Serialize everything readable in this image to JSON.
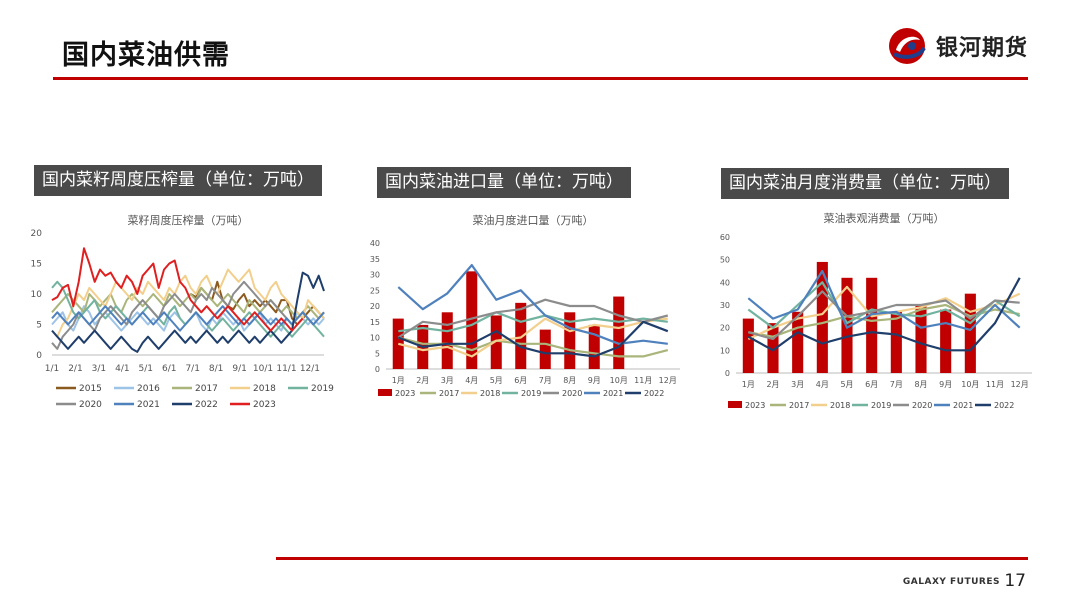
{
  "header": {
    "title": "国内菜油供需",
    "logo_text": "银河期货"
  },
  "footer": {
    "brand": "GALAXY FUTURES",
    "page": "17"
  },
  "panels": [
    {
      "title": "国内菜籽周度压榨量（单位：万吨）"
    },
    {
      "title": "国内菜油进口量（单位：万吨）"
    },
    {
      "title": "国内菜油月度消费量（单位：万吨）"
    }
  ],
  "colors": {
    "accent": "#c00000",
    "title_bar": "#4a4a4a"
  },
  "chart_data": [
    {
      "type": "line",
      "title": "菜籽周度压榨量（万吨）",
      "ylim": [
        0,
        20
      ],
      "yticks": [
        0,
        5,
        10,
        15,
        20
      ],
      "xticks": [
        "1/1",
        "2/1",
        "3/1",
        "4/1",
        "5/1",
        "6/1",
        "7/1",
        "8/1",
        "9/1",
        "10/1",
        "11/1",
        "12/1"
      ],
      "x_weeks": 52,
      "legend_position": "bottom",
      "series": [
        {
          "name": "2015",
          "color": "#8b5a1e",
          "start": 26,
          "values": [
            10,
            9.5,
            11,
            10,
            9,
            12,
            9,
            8,
            7.5,
            9,
            10,
            8,
            9,
            8,
            9,
            8,
            7,
            9,
            9,
            6,
            5,
            6,
            7,
            8,
            7,
            6
          ]
        },
        {
          "name": "2016",
          "color": "#9dc3e6",
          "start": 0,
          "values": [
            5,
            6,
            7,
            5,
            4,
            6,
            8,
            7,
            5,
            6,
            7,
            6,
            5,
            4,
            5,
            6,
            7,
            6,
            5,
            6,
            5,
            4,
            6,
            7,
            6,
            5,
            6,
            7,
            5,
            4,
            6,
            5,
            7,
            6,
            5,
            6,
            4,
            5,
            6,
            7,
            5,
            6,
            5,
            4,
            6,
            5,
            7,
            6,
            5,
            6,
            5,
            6
          ]
        },
        {
          "name": "2017",
          "color": "#a9b57a",
          "start": 0,
          "values": [
            7,
            8,
            9,
            10,
            9,
            8,
            7,
            10,
            9,
            8,
            9,
            10,
            8,
            7,
            9,
            10,
            9,
            8,
            9,
            10,
            9,
            8,
            10,
            9,
            8,
            9,
            10,
            9,
            11,
            10,
            9,
            8,
            9,
            10,
            9,
            8,
            7,
            9,
            8,
            7,
            8,
            9,
            8,
            7,
            8,
            7,
            6,
            7,
            8,
            7,
            6,
            7
          ]
        },
        {
          "name": "2018",
          "color": "#f2cf8c",
          "start": 0,
          "values": [
            4,
            3,
            5,
            6,
            8,
            10,
            9,
            11,
            10,
            9,
            8,
            10,
            12,
            11,
            10,
            9,
            11,
            10,
            12,
            11,
            10,
            9,
            11,
            10,
            12,
            13,
            11,
            10,
            12,
            13,
            11,
            10,
            12,
            14,
            13,
            12,
            13,
            14,
            11,
            10,
            9,
            11,
            12,
            10,
            9,
            8,
            7,
            6,
            9,
            8,
            7,
            6
          ]
        },
        {
          "name": "2019",
          "color": "#72b39f",
          "start": 0,
          "values": [
            11,
            12,
            11,
            9,
            7,
            6,
            7,
            8,
            9,
            7,
            6,
            7,
            8,
            7,
            6,
            5,
            6,
            7,
            8,
            7,
            6,
            5,
            7,
            8,
            6,
            5,
            6,
            7,
            6,
            5,
            4,
            5,
            6,
            5,
            4,
            5,
            6,
            7,
            6,
            5,
            4,
            3,
            4,
            5,
            4,
            3,
            4,
            5,
            6,
            5,
            4,
            3
          ]
        },
        {
          "name": "2020",
          "color": "#8c8c8c",
          "start": 0,
          "values": [
            2,
            1,
            3,
            4,
            5,
            7,
            6,
            5,
            4,
            6,
            7,
            8,
            7,
            6,
            5,
            7,
            8,
            9,
            8,
            7,
            6,
            8,
            9,
            10,
            9,
            8,
            7,
            9,
            10,
            9,
            11,
            10,
            9,
            8,
            10,
            11,
            12,
            11,
            10,
            9,
            8,
            9,
            8,
            7,
            6,
            5,
            6,
            7,
            6,
            5,
            6,
            7
          ]
        },
        {
          "name": "2021",
          "color": "#4f81bd",
          "start": 0,
          "values": [
            6,
            7,
            6,
            5,
            6,
            7,
            6,
            5,
            6,
            7,
            8,
            7,
            6,
            5,
            6,
            5,
            6,
            7,
            6,
            5,
            6,
            7,
            6,
            5,
            4,
            5,
            6,
            7,
            6,
            5,
            6,
            7,
            8,
            7,
            6,
            5,
            6,
            5,
            6,
            7,
            6,
            5,
            6,
            5,
            6,
            5,
            6,
            7,
            6,
            5,
            6,
            7
          ]
        },
        {
          "name": "2022",
          "color": "#1f3e6b",
          "start": 0,
          "values": [
            4,
            3,
            2,
            1,
            2,
            3,
            2,
            3,
            4,
            3,
            2,
            1,
            2,
            3,
            2,
            1,
            0.5,
            2,
            3,
            2,
            1,
            2,
            3,
            4,
            3,
            2,
            3,
            2,
            3,
            4,
            3,
            2,
            3,
            2,
            3,
            4,
            3,
            2,
            3,
            2,
            3,
            4,
            3,
            2,
            3,
            4,
            9,
            13.5,
            13,
            11,
            13,
            10.5
          ]
        },
        {
          "name": "2023",
          "color": "#e02020",
          "start": 0,
          "values": [
            9,
            9.5,
            11,
            11.5,
            8,
            12,
            17.5,
            15,
            12,
            14,
            13,
            13.5,
            12,
            11,
            13,
            12,
            10,
            13,
            14,
            15,
            11,
            14,
            15,
            15.5,
            12,
            11,
            9,
            8,
            7,
            8,
            7,
            6,
            7,
            8,
            7,
            6,
            5,
            6,
            7,
            6,
            5,
            4,
            5,
            6,
            5,
            4,
            5,
            6
          ]
        }
      ]
    },
    {
      "type": "bar",
      "title": "菜油月度进口量（万吨）",
      "ylim": [
        0,
        40
      ],
      "yticks": [
        0,
        5,
        10,
        15,
        20,
        25,
        30,
        35,
        40
      ],
      "categories": [
        "1月",
        "2月",
        "3月",
        "4月",
        "5月",
        "6月",
        "7月",
        "8月",
        "9月",
        "10月",
        "11月",
        "12月"
      ],
      "legend_position": "bottom",
      "bars": {
        "name": "2023",
        "color": "#c00000",
        "values": [
          16,
          14,
          18,
          31,
          17,
          21,
          12.5,
          18,
          14,
          23,
          null,
          null
        ]
      },
      "series": [
        {
          "name": "2017",
          "color": "#a9b57a",
          "values": [
            10,
            8,
            8,
            6,
            9,
            8,
            8,
            6,
            5,
            4,
            4,
            6
          ]
        },
        {
          "name": "2018",
          "color": "#f2cf8c",
          "values": [
            8,
            6,
            7,
            4,
            9,
            10,
            16,
            12,
            14,
            13,
            15,
            16
          ]
        },
        {
          "name": "2019",
          "color": "#72b39f",
          "values": [
            12,
            13,
            12,
            14,
            18,
            15,
            17,
            15,
            16,
            15,
            16,
            15
          ]
        },
        {
          "name": "2020",
          "color": "#8c8c8c",
          "values": [
            10,
            15,
            14,
            16,
            18,
            19,
            22,
            20,
            20,
            17,
            15,
            17
          ]
        },
        {
          "name": "2021",
          "color": "#4f81bd",
          "values": [
            26,
            19,
            24,
            33,
            22,
            25,
            17,
            13,
            11,
            8,
            9,
            8
          ]
        },
        {
          "name": "2022",
          "color": "#1f3e6b",
          "values": [
            10,
            7,
            8,
            8,
            12,
            7,
            5,
            5,
            4,
            7,
            15,
            12
          ]
        }
      ]
    },
    {
      "type": "bar",
      "title": "菜油表观消费量（万吨）",
      "ylim": [
        0,
        60
      ],
      "yticks": [
        0,
        10,
        20,
        30,
        40,
        50,
        60
      ],
      "categories": [
        "1月",
        "2月",
        "3月",
        "4月",
        "5月",
        "6月",
        "7月",
        "8月",
        "9月",
        "10月",
        "11月",
        "12月"
      ],
      "legend_position": "bottom",
      "bars": {
        "name": "2023",
        "color": "#c00000",
        "values": [
          24,
          22,
          27,
          49,
          42,
          42,
          27,
          30,
          28,
          35,
          null,
          null
        ]
      },
      "series": [
        {
          "name": "2017",
          "color": "#a9b57a",
          "values": [
            18,
            16,
            20,
            22,
            25,
            23,
            24,
            28,
            30,
            25,
            28,
            26
          ]
        },
        {
          "name": "2018",
          "color": "#f2cf8c",
          "values": [
            15,
            20,
            24,
            26,
            38,
            25,
            27,
            29,
            33,
            27,
            30,
            35
          ]
        },
        {
          "name": "2019",
          "color": "#72b39f",
          "values": [
            28,
            20,
            30,
            40,
            22,
            28,
            26,
            25,
            28,
            22,
            32,
            25
          ]
        },
        {
          "name": "2020",
          "color": "#8c8c8c",
          "values": [
            18,
            15,
            25,
            36,
            25,
            27,
            30,
            30,
            32,
            24,
            32,
            31
          ]
        },
        {
          "name": "2021",
          "color": "#4f81bd",
          "values": [
            33,
            24,
            28,
            45,
            20,
            26,
            27,
            20,
            22,
            19,
            30,
            20
          ]
        },
        {
          "name": "2022",
          "color": "#1f3e6b",
          "values": [
            16,
            10,
            18,
            13,
            16,
            18,
            17,
            13,
            10,
            10,
            22,
            42
          ]
        }
      ]
    }
  ]
}
